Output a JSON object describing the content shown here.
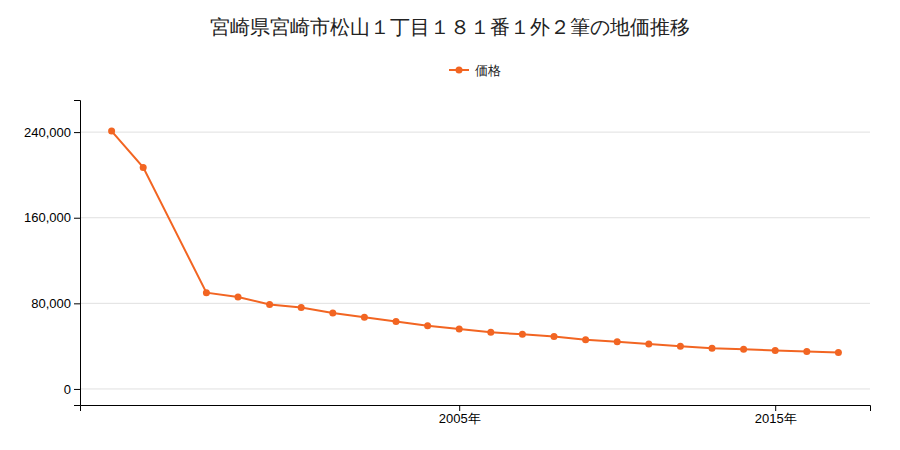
{
  "chart_data": {
    "type": "line",
    "title": "宮崎県宮崎市松山１丁目１８１番１外２筆の地価推移",
    "x": [
      1994,
      1995,
      1997,
      1998,
      1999,
      2000,
      2001,
      2002,
      2003,
      2004,
      2005,
      2006,
      2007,
      2008,
      2009,
      2010,
      2011,
      2012,
      2013,
      2014,
      2015,
      2016,
      2017
    ],
    "series": [
      {
        "name": "価格",
        "color": "#f26522",
        "marker": "circle",
        "line_style": "solid",
        "values": [
          241000,
          207000,
          90000,
          86000,
          79000,
          76000,
          71000,
          67000,
          63000,
          59000,
          56000,
          53000,
          51000,
          49000,
          46000,
          44000,
          42000,
          40000,
          38000,
          37000,
          36000,
          35000,
          34000
        ]
      }
    ],
    "xlim": [
      1993,
      2018
    ],
    "xticks": [
      {
        "value": 2005,
        "label": "2005年"
      },
      {
        "value": 2015,
        "label": "2015年"
      }
    ],
    "ylim": [
      -15000,
      270000
    ],
    "yticks": [
      0,
      {
        "value": 80000,
        "label": "80,000"
      },
      {
        "value": 160000,
        "label": "160,000"
      },
      {
        "value": 240000,
        "label": "240,000"
      }
    ],
    "grid": true,
    "legend": "top"
  }
}
